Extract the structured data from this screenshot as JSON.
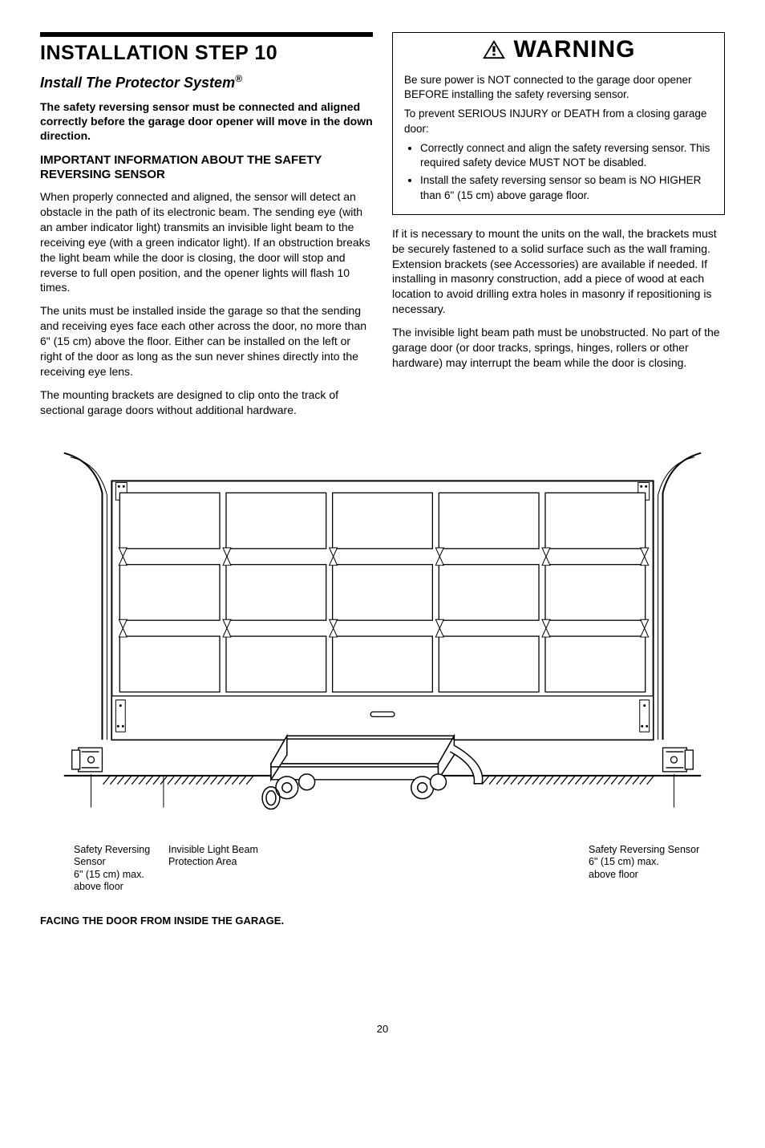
{
  "left": {
    "rule": true,
    "title": "INSTALLATION STEP 10",
    "subtitle_prefix": "Install The Protector System",
    "subtitle_reg": "®",
    "bold_intro": "The safety reversing sensor must be connected and aligned correctly before the garage door opener will move in the down direction.",
    "subhead": "IMPORTANT INFORMATION ABOUT THE SAFETY REVERSING SENSOR",
    "p1": "When properly connected and aligned, the sensor will detect an obstacle in the path of its electronic beam. The sending eye (with an amber indicator light) transmits an invisible light beam to the receiving eye (with a green indicator light). If an obstruction breaks the light beam while the door is closing, the door will stop and reverse to full open position, and the opener lights will flash 10 times.",
    "p2": "The units must be installed inside the garage so that the sending and receiving eyes face each other across the door, no more than 6\" (15 cm) above the floor. Either can be installed on the left or right of the door as long as the sun never shines directly into the receiving eye lens.",
    "p3": "The mounting brackets are designed to clip onto the track of sectional garage doors without additional hardware."
  },
  "warning": {
    "label": "WARNING",
    "p1": "Be sure power is NOT connected to the garage door opener BEFORE installing the safety reversing sensor.",
    "p2": "To prevent SERIOUS INJURY or DEATH from a closing garage door:",
    "b1": "Correctly connect and align the safety reversing sensor. This required safety device MUST NOT be disabled.",
    "b2": "Install the safety reversing sensor so beam is NO HIGHER than 6\" (15 cm) above garage floor."
  },
  "right": {
    "p1": "If it is necessary to mount the units on the wall, the brackets must be securely fastened to a solid surface such as the wall framing. Extension brackets (see Accessories) are available if needed. If installing in masonry construction, add a piece of wood at each location to avoid drilling extra holes in masonry if repositioning is necessary.",
    "p2": "The invisible light beam path must be unobstructed. No part of the garage door (or door tracks, springs, hinges, rollers or other hardware) may interrupt the beam while the door is closing."
  },
  "diagram": {
    "type": "infographic",
    "colors": {
      "stroke": "#000000",
      "bg": "#ffffff",
      "hatch": "#000000"
    },
    "line_width_frame": 2,
    "line_width_thin": 1,
    "door_panel_rows": 3,
    "door_panel_cols": 5,
    "cap_left_l1": "Safety Reversing Sensor",
    "cap_left_l2": "6\" (15 cm) max.",
    "cap_left_l3": "above floor",
    "cap_mid_l1": "Invisible Light Beam",
    "cap_mid_l2": "Protection Area",
    "cap_right_l1": "Safety Reversing Sensor",
    "cap_right_l2": "6\" (15 cm) max.",
    "cap_right_l3": "above floor"
  },
  "facing": "FACING THE DOOR FROM INSIDE THE GARAGE.",
  "page": "20"
}
